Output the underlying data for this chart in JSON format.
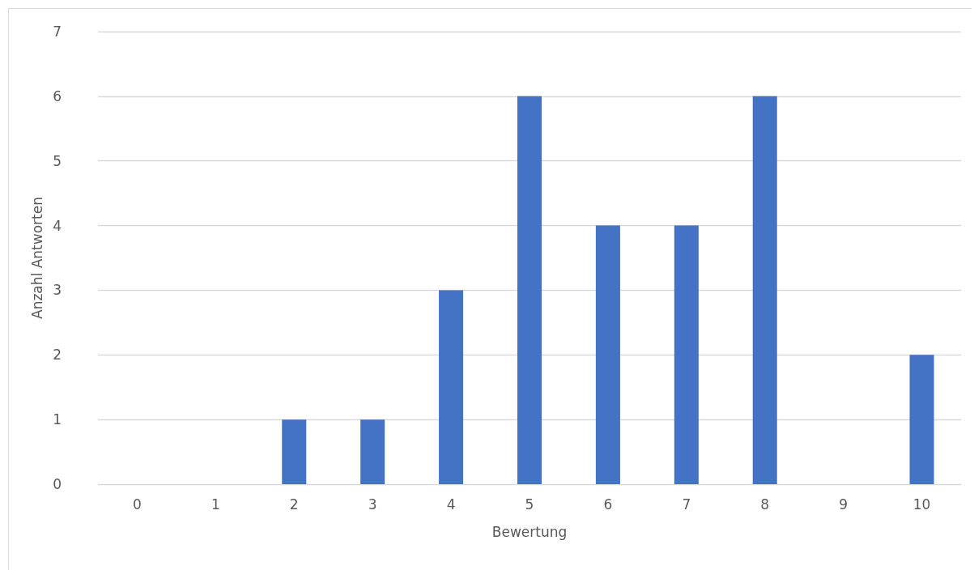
{
  "chart_data": {
    "type": "bar",
    "xlabel": "Bewertung",
    "ylabel": "Anzahl Antworten",
    "categories": [
      "0",
      "1",
      "2",
      "3",
      "4",
      "5",
      "6",
      "7",
      "8",
      "9",
      "10"
    ],
    "values": [
      0,
      0,
      1,
      1,
      3,
      6,
      4,
      4,
      6,
      0,
      2
    ],
    "color": "#4472c4",
    "ylim": [
      0,
      7
    ],
    "yticks": [
      0,
      1,
      2,
      3,
      4,
      5,
      6,
      7
    ],
    "grid": "y"
  }
}
